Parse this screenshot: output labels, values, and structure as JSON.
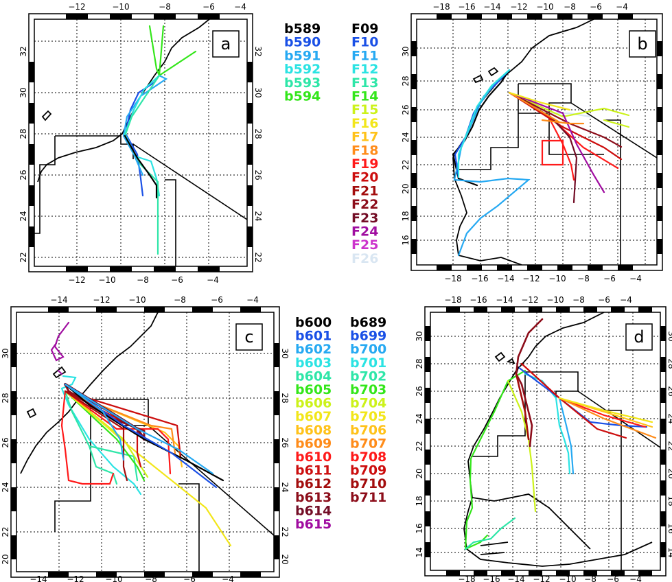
{
  "panels": [
    {
      "id": "a",
      "label": "a",
      "top_ticks": [
        "−12",
        "−10",
        "−8",
        "−6",
        "−4"
      ],
      "bottom_ticks": [
        "−12",
        "−10",
        "−8",
        "−6",
        "−4"
      ],
      "left_ticks": [
        "32",
        "30",
        "28",
        "26",
        "24",
        "22"
      ],
      "right_ticks": [
        "32",
        "30",
        "28",
        "26",
        "24",
        "22"
      ],
      "legend_columns": [
        [
          {
            "text": "b589",
            "color": "#000000"
          },
          {
            "text": "b590",
            "color": "#1a50e6"
          },
          {
            "text": "b591",
            "color": "#26a9f2"
          },
          {
            "text": "b592",
            "color": "#2be3e3"
          },
          {
            "text": "b593",
            "color": "#2ee6a8"
          },
          {
            "text": "b594",
            "color": "#33e61a"
          }
        ],
        [
          {
            "text": "F09",
            "color": "#000000"
          },
          {
            "text": "F10",
            "color": "#1a50e6"
          },
          {
            "text": "F11",
            "color": "#26a9f2"
          },
          {
            "text": "F12",
            "color": "#2be3e3"
          },
          {
            "text": "F13",
            "color": "#2ee6a8"
          },
          {
            "text": "F14",
            "color": "#33e61a"
          },
          {
            "text": "F15",
            "color": "#ccf21a"
          },
          {
            "text": "F16",
            "color": "#f2e61a"
          },
          {
            "text": "F17",
            "color": "#ffc21a"
          },
          {
            "text": "F18",
            "color": "#ff8c1a"
          },
          {
            "text": "F19",
            "color": "#ff1a1a"
          },
          {
            "text": "F20",
            "color": "#cc0d0d"
          },
          {
            "text": "F21",
            "color": "#a30d0d"
          },
          {
            "text": "F22",
            "color": "#8c0d1a"
          },
          {
            "text": "F23",
            "color": "#730d26"
          },
          {
            "text": "F24",
            "color": "#a00da0"
          },
          {
            "text": "F25",
            "color": "#cc33cc"
          },
          {
            "text": "F26",
            "color": "#d9e6f2"
          }
        ]
      ]
    },
    {
      "id": "b",
      "label": "b",
      "top_ticks": [
        "−18",
        "−16",
        "−14",
        "−12",
        "−10",
        "−8",
        "−6",
        "−4"
      ],
      "bottom_ticks": [
        "−18",
        "−16",
        "−14",
        "−12",
        "−10",
        "−8",
        "−6",
        "−4"
      ],
      "left_ticks": [
        "30",
        "28",
        "26",
        "24",
        "22",
        "20",
        "18",
        "16"
      ],
      "right_ticks": []
    },
    {
      "id": "c",
      "label": "c",
      "top_ticks": [
        "−14",
        "−12",
        "−10",
        "−8",
        "−6",
        "−4"
      ],
      "bottom_ticks": [
        "−14",
        "−12",
        "−10",
        "−8",
        "−6",
        "−4"
      ],
      "left_ticks": [
        "30",
        "28",
        "26",
        "24",
        "22",
        "20"
      ],
      "right_ticks": [
        "30",
        "28",
        "26",
        "24",
        "22",
        "20"
      ],
      "legend_columns": [
        [
          {
            "text": "b600",
            "color": "#000000"
          },
          {
            "text": "b601",
            "color": "#1a50e6"
          },
          {
            "text": "b602",
            "color": "#26a9f2"
          },
          {
            "text": "b603",
            "color": "#2be3e3"
          },
          {
            "text": "b604",
            "color": "#2ee6a8"
          },
          {
            "text": "b605",
            "color": "#33e61a"
          },
          {
            "text": "b606",
            "color": "#ccf21a"
          },
          {
            "text": "b607",
            "color": "#f2e61a"
          },
          {
            "text": "b608",
            "color": "#ffc21a"
          },
          {
            "text": "b609",
            "color": "#ff8c1a"
          },
          {
            "text": "b610",
            "color": "#ff1a1a"
          },
          {
            "text": "b611",
            "color": "#cc0d0d"
          },
          {
            "text": "b612",
            "color": "#a30d0d"
          },
          {
            "text": "b613",
            "color": "#8c0d1a"
          },
          {
            "text": "b614",
            "color": "#730d26"
          },
          {
            "text": "b615",
            "color": "#a00da0"
          }
        ],
        [
          {
            "text": "b689",
            "color": "#000000"
          },
          {
            "text": "b699",
            "color": "#1a50e6"
          },
          {
            "text": "b700",
            "color": "#26a9f2"
          },
          {
            "text": "b701",
            "color": "#2be3e3"
          },
          {
            "text": "b702",
            "color": "#2ee6a8"
          },
          {
            "text": "b703",
            "color": "#33e61a"
          },
          {
            "text": "b704",
            "color": "#ccf21a"
          },
          {
            "text": "b705",
            "color": "#f2e61a"
          },
          {
            "text": "b706",
            "color": "#ffc21a"
          },
          {
            "text": "b707",
            "color": "#ff8c1a"
          },
          {
            "text": "b708",
            "color": "#ff1a1a"
          },
          {
            "text": "b709",
            "color": "#cc0d0d"
          },
          {
            "text": "b710",
            "color": "#a30d0d"
          },
          {
            "text": "b711",
            "color": "#8c0d1a"
          }
        ]
      ]
    },
    {
      "id": "d",
      "label": "d",
      "top_ticks": [
        "−18",
        "−16",
        "−14",
        "−12",
        "−10",
        "−8",
        "−6",
        "−4"
      ],
      "bottom_ticks": [
        "−18",
        "−16",
        "−14",
        "−12",
        "−10",
        "−8",
        "−6",
        "−4"
      ],
      "left_ticks": [
        "30",
        "28",
        "26",
        "24",
        "22",
        "20",
        "18",
        "16",
        "14"
      ],
      "right_ticks": [
        "30",
        "28",
        "26",
        "24",
        "22",
        "20",
        "18",
        "16",
        "14"
      ]
    }
  ]
}
